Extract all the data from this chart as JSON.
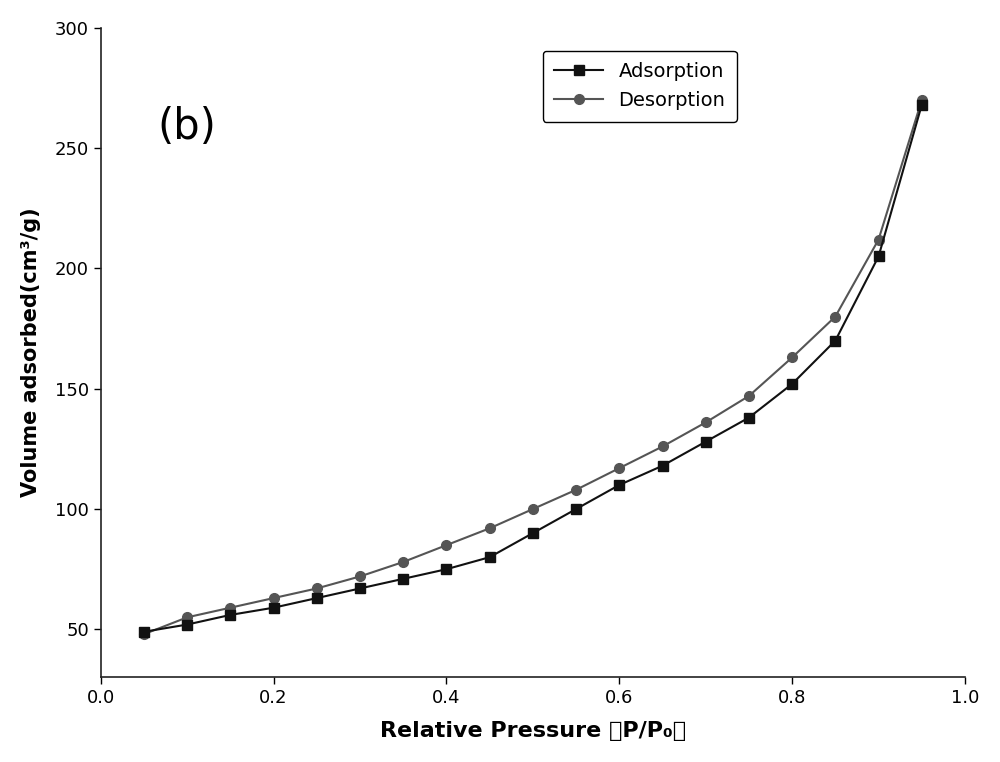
{
  "adsorption_x": [
    0.05,
    0.1,
    0.15,
    0.2,
    0.25,
    0.3,
    0.35,
    0.4,
    0.45,
    0.5,
    0.55,
    0.6,
    0.65,
    0.7,
    0.75,
    0.8,
    0.85,
    0.9,
    0.95
  ],
  "adsorption_y": [
    49,
    52,
    56,
    59,
    63,
    67,
    71,
    75,
    80,
    90,
    100,
    110,
    118,
    128,
    138,
    152,
    170,
    205,
    268
  ],
  "desorption_x": [
    0.05,
    0.1,
    0.15,
    0.2,
    0.25,
    0.3,
    0.35,
    0.4,
    0.45,
    0.5,
    0.55,
    0.6,
    0.65,
    0.7,
    0.75,
    0.8,
    0.85,
    0.9,
    0.95
  ],
  "desorption_y": [
    48,
    55,
    59,
    63,
    67,
    72,
    78,
    85,
    92,
    100,
    108,
    117,
    126,
    136,
    147,
    163,
    180,
    212,
    270
  ],
  "xlabel": "Relative Pressure （P/P₀）",
  "ylabel": "Volume adsorbed(cm³/g)",
  "label_b": "(b)",
  "legend_adsorption": "Adsorption",
  "legend_desorption": "Desorption",
  "xlim": [
    0.0,
    1.0
  ],
  "ylim": [
    30,
    300
  ],
  "xticks": [
    0.0,
    0.2,
    0.4,
    0.6,
    0.8,
    1.0
  ],
  "yticks": [
    50,
    100,
    150,
    200,
    250,
    300
  ],
  "adsorption_color": "#111111",
  "desorption_color": "#555555",
  "background_color": "#ffffff",
  "linewidth": 1.5,
  "markersize": 7
}
